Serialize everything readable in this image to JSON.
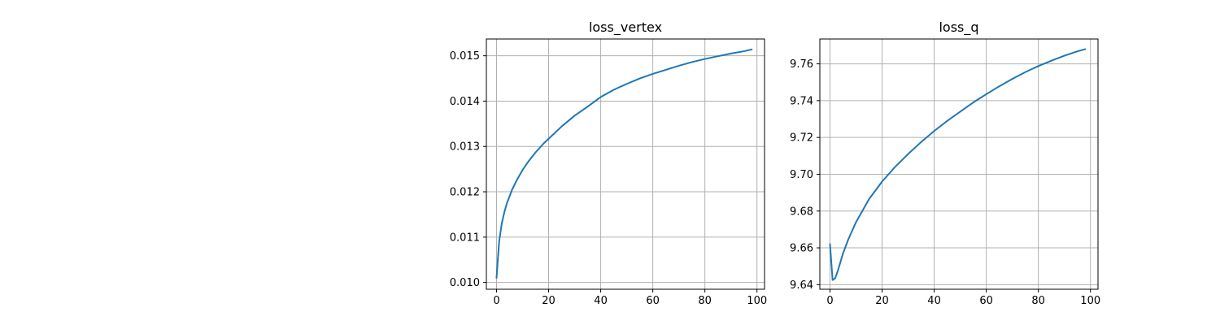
{
  "chart_data": [
    {
      "type": "line",
      "title": "loss_vertex",
      "xlabel": "",
      "ylabel": "",
      "xlim": [
        -3.9,
        102.9
      ],
      "ylim": [
        0.00985,
        0.01537
      ],
      "xticks": [
        0,
        20,
        40,
        60,
        80,
        100
      ],
      "xtick_labels": [
        "0",
        "20",
        "40",
        "60",
        "80",
        "100"
      ],
      "yticks": [
        0.01,
        0.011,
        0.012,
        0.013,
        0.014,
        0.015
      ],
      "ytick_labels": [
        "0.010",
        "0.011",
        "0.012",
        "0.013",
        "0.014",
        "0.015"
      ],
      "grid": true,
      "series": [
        {
          "color": "#1f77b4",
          "x": [
            0,
            1,
            2,
            3,
            4,
            5,
            6,
            8,
            10,
            12,
            15,
            18,
            20,
            25,
            30,
            35,
            40,
            45,
            50,
            55,
            60,
            65,
            70,
            75,
            80,
            85,
            90,
            95,
            98
          ],
          "y": [
            0.0101,
            0.0109,
            0.0113,
            0.01155,
            0.01175,
            0.0119,
            0.01205,
            0.01228,
            0.01248,
            0.01265,
            0.01287,
            0.01306,
            0.01317,
            0.01344,
            0.01368,
            0.01388,
            0.01409,
            0.01425,
            0.01438,
            0.0145,
            0.0146,
            0.01469,
            0.01478,
            0.01486,
            0.01493,
            0.01499,
            0.01505,
            0.0151,
            0.01514
          ]
        }
      ]
    },
    {
      "type": "line",
      "title": "loss_q",
      "xlabel": "",
      "ylabel": "",
      "xlim": [
        -3.9,
        102.9
      ],
      "ylim": [
        9.6375,
        9.7735
      ],
      "xticks": [
        0,
        20,
        40,
        60,
        80,
        100
      ],
      "xtick_labels": [
        "0",
        "20",
        "40",
        "60",
        "80",
        "100"
      ],
      "yticks": [
        9.64,
        9.66,
        9.68,
        9.7,
        9.72,
        9.74,
        9.76
      ],
      "ytick_labels": [
        "9.64",
        "9.66",
        "9.68",
        "9.70",
        "9.72",
        "9.74",
        "9.76"
      ],
      "grid": true,
      "series": [
        {
          "color": "#1f77b4",
          "x": [
            0,
            1,
            2,
            3,
            5,
            7,
            10,
            15,
            20,
            25,
            30,
            35,
            40,
            45,
            50,
            55,
            60,
            65,
            70,
            75,
            80,
            85,
            90,
            95,
            98
          ],
          "y": [
            9.662,
            9.6425,
            9.6435,
            9.6475,
            9.657,
            9.6645,
            9.674,
            9.6865,
            9.696,
            9.704,
            9.711,
            9.7175,
            9.7235,
            9.729,
            9.734,
            9.739,
            9.7435,
            9.7478,
            9.7518,
            9.7555,
            9.7588,
            9.7617,
            9.7644,
            9.7668,
            9.768
          ]
        }
      ]
    }
  ]
}
